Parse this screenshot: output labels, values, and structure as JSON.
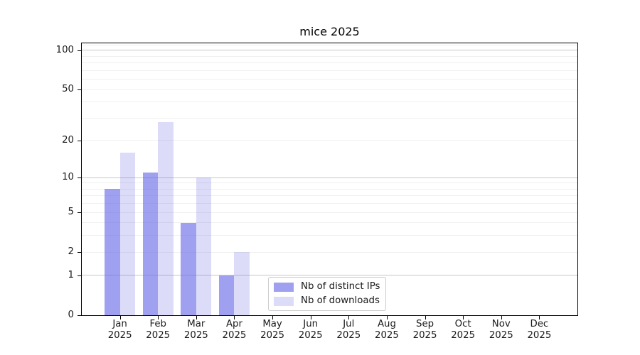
{
  "chart_data": {
    "type": "bar",
    "title": "mice 2025",
    "x_months": [
      "Jan",
      "Feb",
      "Mar",
      "Apr",
      "May",
      "Jun",
      "Jul",
      "Aug",
      "Sep",
      "Oct",
      "Nov",
      "Dec"
    ],
    "x_year": "2025",
    "series": [
      {
        "name": "Nb of distinct IPs",
        "base_color": "#6666e6",
        "alpha": 0.62,
        "effective_color": "#a0a0f0",
        "values": [
          8,
          11,
          4,
          1,
          0,
          0,
          0,
          0,
          0,
          0,
          0,
          0
        ]
      },
      {
        "name": "Nb of downloads",
        "base_color": "#6666e6",
        "alpha": 0.23,
        "effective_color": "#dcdcf8",
        "values": [
          16,
          28,
          10,
          2,
          0,
          0,
          0,
          0,
          0,
          0,
          0,
          0
        ]
      }
    ],
    "yscale": "log1p",
    "yticks": [
      0,
      1,
      2,
      5,
      10,
      20,
      50,
      100
    ],
    "ylim": [
      0,
      113
    ],
    "grid": {
      "major_at": [
        1,
        10,
        100
      ],
      "minor_at": [
        2,
        3,
        4,
        5,
        6,
        7,
        8,
        9,
        20,
        30,
        40,
        50,
        60,
        70,
        80,
        90,
        110
      ]
    },
    "legend_position": "inside plot, lower middle",
    "bar_width_fraction": 0.4
  },
  "colors": {
    "background": "#ffffff",
    "grid_major": "#c6c6c6",
    "grid_minor": "#f0f0f0",
    "axis": "#000000",
    "tick_text": "#1a1a1a",
    "legend_border": "#cccccc",
    "legend_bg": "#ffffff"
  }
}
